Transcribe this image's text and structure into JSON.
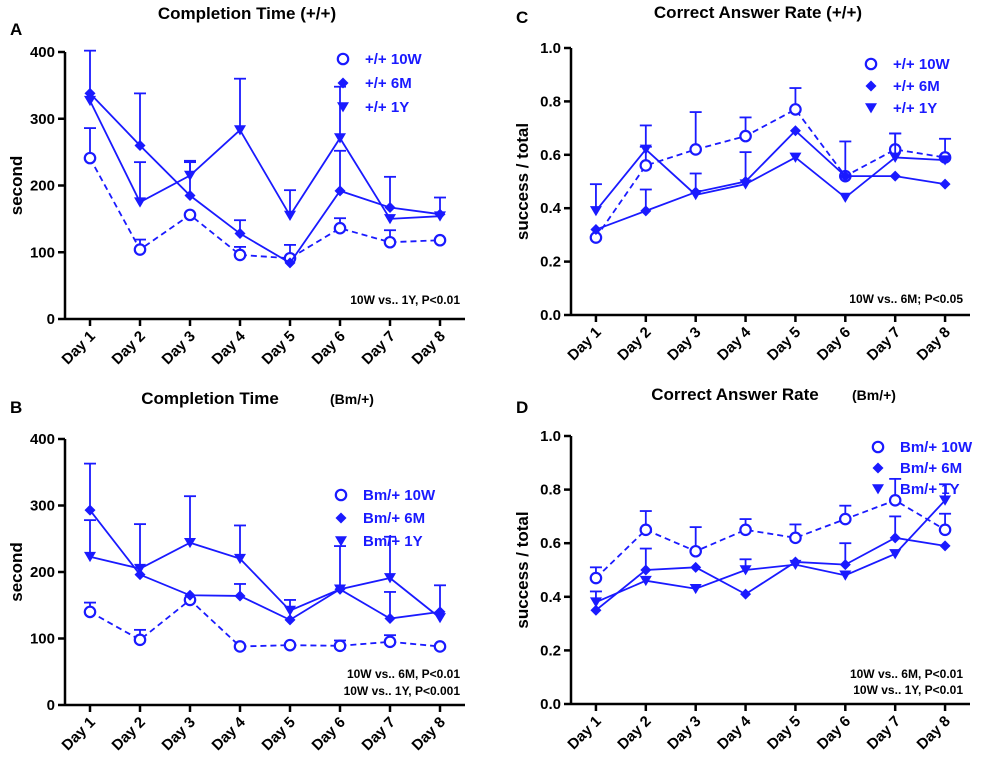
{
  "figure": {
    "series_color": "#1a1aff",
    "text_color": "#000000",
    "markers": {
      "10W": "open-circle",
      "6M": "filled-diamond",
      "1Y": "filled-triangle-down"
    }
  },
  "chart_data": [
    {
      "panel": "A",
      "type": "line",
      "title": "Completion Time (+/+)",
      "xlabel": "",
      "ylabel": "second",
      "categories": [
        "Day 1",
        "Day 2",
        "Day 3",
        "Day 4",
        "Day 5",
        "Day 6",
        "Day 7",
        "Day 8"
      ],
      "ylim": [
        0,
        400
      ],
      "yticks": [
        0,
        100,
        200,
        300,
        400
      ],
      "legend_position": "top-right",
      "series": [
        {
          "name": "+/+ 10W",
          "key": "10W",
          "dashed": true,
          "values": [
            241,
            104,
            156,
            96,
            91,
            136,
            115,
            118
          ],
          "errors": [
            45,
            15,
            0,
            12,
            20,
            15,
            18,
            0
          ]
        },
        {
          "name": "+/+ 6M",
          "key": "6M",
          "dashed": false,
          "values": [
            338,
            260,
            185,
            128,
            84,
            192,
            167,
            157
          ],
          "errors": [
            0,
            78,
            50,
            20,
            0,
            60,
            46,
            25
          ]
        },
        {
          "name": "+/+ 1Y",
          "key": "1Y",
          "dashed": false,
          "values": [
            327,
            175,
            215,
            283,
            155,
            271,
            150,
            154
          ],
          "errors": [
            75,
            60,
            22,
            77,
            38,
            77,
            0,
            0
          ]
        }
      ],
      "annotations": [
        "10W vs.. 1Y, P<0.01"
      ]
    },
    {
      "panel": "B",
      "type": "line",
      "title": "Completion Time",
      "title_suffix": "(Bm/+)",
      "xlabel": "",
      "ylabel": "second",
      "categories": [
        "Day 1",
        "Day 2",
        "Day 3",
        "Day 4",
        "Day 5",
        "Day 6",
        "Day 7",
        "Day 8"
      ],
      "ylim": [
        0,
        400
      ],
      "yticks": [
        0,
        100,
        200,
        300,
        400
      ],
      "legend_position": "top-right",
      "series": [
        {
          "name": "Bm/+ 10W",
          "key": "10W",
          "dashed": true,
          "values": [
            140,
            98,
            158,
            88,
            90,
            89,
            95,
            88
          ],
          "errors": [
            14,
            15,
            0,
            0,
            0,
            8,
            10,
            0
          ]
        },
        {
          "name": "Bm/+ 6M",
          "key": "6M",
          "dashed": false,
          "values": [
            293,
            196,
            165,
            164,
            128,
            174,
            130,
            140
          ],
          "errors": [
            70,
            76,
            0,
            18,
            30,
            65,
            40,
            40
          ]
        },
        {
          "name": "Bm/+ 1Y",
          "key": "1Y",
          "dashed": false,
          "values": [
            223,
            205,
            244,
            220,
            142,
            174,
            191,
            131
          ],
          "errors": [
            55,
            0,
            70,
            50,
            0,
            0,
            62,
            0
          ]
        }
      ],
      "annotations": [
        "10W vs.. 6M, P<0.01",
        "10W vs.. 1Y, P<0.001"
      ]
    },
    {
      "panel": "C",
      "type": "line",
      "title": "Correct Answer Rate (+/+)",
      "xlabel": "",
      "ylabel": "success / total",
      "categories": [
        "Day 1",
        "Day 2",
        "Day 3",
        "Day 4",
        "Day 5",
        "Day 6",
        "Day 7",
        "Day 8"
      ],
      "ylim": [
        0,
        1.0
      ],
      "yticks": [
        "0.0",
        "0.2",
        "0.4",
        "0.6",
        "0.8",
        "1.0"
      ],
      "legend_position": "top-right",
      "series": [
        {
          "name": "+/+ 10W",
          "key": "10W",
          "dashed": true,
          "values": [
            0.29,
            0.56,
            0.62,
            0.67,
            0.77,
            0.52,
            0.62,
            0.59
          ],
          "errors": [
            0,
            0.07,
            0.14,
            0.07,
            0.08,
            0.13,
            0.06,
            0.07
          ]
        },
        {
          "name": "+/+ 6M",
          "key": "6M",
          "dashed": false,
          "values": [
            0.32,
            0.39,
            0.46,
            0.5,
            0.69,
            0.52,
            0.52,
            0.49
          ],
          "errors": [
            0,
            0.08,
            0,
            0.11,
            0,
            0,
            0,
            0
          ]
        },
        {
          "name": "+/+ 1Y",
          "key": "1Y",
          "dashed": false,
          "values": [
            0.39,
            0.62,
            0.45,
            0.49,
            0.59,
            0.44,
            0.59,
            0.58
          ],
          "errors": [
            0.1,
            0.09,
            0.08,
            0,
            0,
            0,
            0.09,
            0
          ]
        }
      ],
      "annotations": [
        "10W vs.. 6M; P<0.05"
      ]
    },
    {
      "panel": "D",
      "type": "line",
      "title": "Correct Answer Rate",
      "title_suffix": "(Bm/+)",
      "xlabel": "",
      "ylabel": "success / total",
      "categories": [
        "Day 1",
        "Day 2",
        "Day 3",
        "Day 4",
        "Day 5",
        "Day 6",
        "Day 7",
        "Day 8"
      ],
      "ylim": [
        0,
        1.0
      ],
      "yticks": [
        "0.0",
        "0.2",
        "0.4",
        "0.6",
        "0.8",
        "1.0"
      ],
      "legend_position": "top-right",
      "series": [
        {
          "name": "Bm/+ 10W",
          "key": "10W",
          "dashed": true,
          "values": [
            0.47,
            0.65,
            0.57,
            0.65,
            0.62,
            0.69,
            0.76,
            0.65
          ],
          "errors": [
            0.04,
            0.07,
            0.09,
            0.04,
            0.05,
            0.05,
            0.08,
            0.06
          ]
        },
        {
          "name": "Bm/+ 6M",
          "key": "6M",
          "dashed": false,
          "values": [
            0.35,
            0.5,
            0.51,
            0.41,
            0.53,
            0.52,
            0.62,
            0.59
          ],
          "errors": [
            0,
            0.08,
            0,
            0,
            0,
            0.08,
            0.08,
            0
          ]
        },
        {
          "name": "Bm/+ 1Y",
          "key": "1Y",
          "dashed": false,
          "values": [
            0.38,
            0.46,
            0.43,
            0.5,
            0.52,
            0.48,
            0.56,
            0.76
          ],
          "errors": [
            0.04,
            0,
            0,
            0.04,
            0,
            0,
            0,
            0.06
          ]
        }
      ],
      "annotations": [
        "10W vs.. 6M, P<0.01",
        "10W vs.. 1Y, P<0.01"
      ]
    }
  ]
}
